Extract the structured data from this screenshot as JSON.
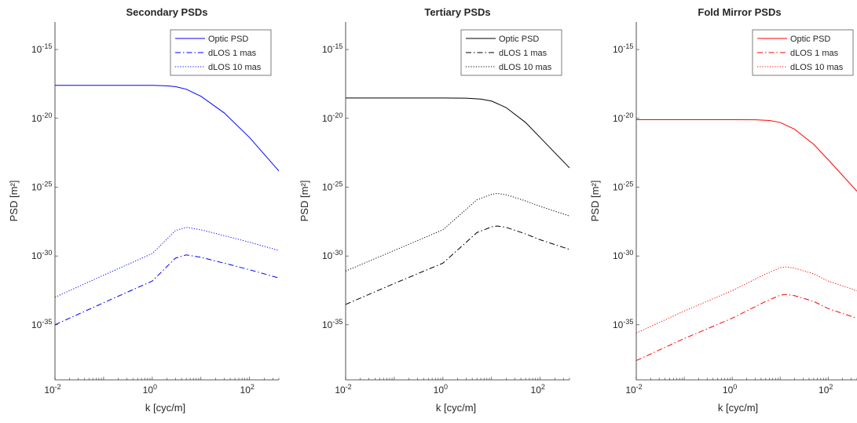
{
  "chart_data": [
    {
      "type": "line",
      "title": "Secondary PSDs",
      "xlabel": "k [cyc/m]",
      "ylabel": "PSD [m²]",
      "xscale": "log",
      "yscale": "log",
      "xlim": [
        0.01,
        400
      ],
      "ylim": [
        1e-39,
        1e-13
      ],
      "xticks": [
        {
          "label": "10",
          "exp": "-2"
        },
        {
          "label": "10",
          "exp": "0"
        },
        {
          "label": "10",
          "exp": "2"
        }
      ],
      "yticks": [
        {
          "label": "10",
          "exp": "-15"
        },
        {
          "label": "10",
          "exp": "-20"
        },
        {
          "label": "10",
          "exp": "-25"
        },
        {
          "label": "10",
          "exp": "-30"
        },
        {
          "label": "10",
          "exp": "-35"
        }
      ],
      "grid": false,
      "legend_position": "top-right",
      "color": "#0000ff",
      "series": [
        {
          "name": "Optic PSD",
          "style": "solid",
          "x": [
            0.01,
            1,
            2,
            3,
            5,
            10,
            30,
            100,
            400
          ],
          "y": [
            2.5e-18,
            2.5e-18,
            2.3e-18,
            2e-18,
            1.3e-18,
            4e-19,
            2.5e-20,
            4e-22,
            1.5e-24
          ]
        },
        {
          "name": "dLOS 1 mas",
          "style": "dashdot",
          "x": [
            0.01,
            0.1,
            1,
            3,
            5,
            10,
            30,
            100,
            400
          ],
          "y": [
            1e-35,
            4e-34,
            1.5e-32,
            7e-31,
            1.2e-30,
            8e-31,
            3e-31,
            1e-31,
            2.5e-32
          ]
        },
        {
          "name": "dLOS 10 mas",
          "style": "dotted",
          "x": [
            0.01,
            0.1,
            1,
            3,
            5,
            10,
            30,
            100,
            400
          ],
          "y": [
            1e-33,
            4e-32,
            1.5e-30,
            7e-29,
            1.2e-28,
            8e-29,
            3e-29,
            1e-29,
            2.5e-30
          ]
        }
      ]
    },
    {
      "type": "line",
      "title": "Tertiary PSDs",
      "xlabel": "k [cyc/m]",
      "ylabel": "PSD [m²]",
      "xscale": "log",
      "yscale": "log",
      "xlim": [
        0.01,
        400
      ],
      "ylim": [
        1e-39,
        1e-13
      ],
      "xticks": [
        {
          "label": "10",
          "exp": "-2"
        },
        {
          "label": "10",
          "exp": "0"
        },
        {
          "label": "10",
          "exp": "2"
        }
      ],
      "yticks": [
        {
          "label": "10",
          "exp": "-15"
        },
        {
          "label": "10",
          "exp": "-20"
        },
        {
          "label": "10",
          "exp": "-25"
        },
        {
          "label": "10",
          "exp": "-30"
        },
        {
          "label": "10",
          "exp": "-35"
        }
      ],
      "grid": false,
      "legend_position": "top-right",
      "color": "#000000",
      "series": [
        {
          "name": "Optic PSD",
          "style": "solid",
          "x": [
            0.01,
            1,
            3,
            6,
            10,
            20,
            50,
            100,
            400
          ],
          "y": [
            3e-19,
            3e-19,
            2.9e-19,
            2.5e-19,
            1.8e-19,
            6e-20,
            5e-21,
            4e-22,
            2.5e-24
          ]
        },
        {
          "name": "dLOS 1 mas",
          "style": "dashdot",
          "x": [
            0.01,
            0.1,
            1,
            5,
            10,
            13,
            20,
            50,
            100,
            400
          ],
          "y": [
            3e-34,
            1e-32,
            3e-31,
            5e-29,
            1.3e-28,
            1.5e-28,
            1.2e-28,
            4e-29,
            1.5e-29,
            3e-30
          ]
        },
        {
          "name": "dLOS 10 mas",
          "style": "dotted",
          "x": [
            0.01,
            0.1,
            1,
            5,
            10,
            13,
            20,
            50,
            100,
            400
          ],
          "y": [
            8e-32,
            2.5e-30,
            8e-29,
            1.2e-26,
            3e-26,
            3.5e-26,
            2.8e-26,
            1e-26,
            4e-27,
            8e-28
          ]
        }
      ]
    },
    {
      "type": "line",
      "title": "Fold Mirror PSDs",
      "xlabel": "k [cyc/m]",
      "ylabel": "PSD [m²]",
      "xscale": "log",
      "yscale": "log",
      "xlim": [
        0.01,
        400
      ],
      "ylim": [
        1e-39,
        1e-13
      ],
      "xticks": [
        {
          "label": "10",
          "exp": "-2"
        },
        {
          "label": "10",
          "exp": "0"
        },
        {
          "label": "10",
          "exp": "2"
        }
      ],
      "yticks": [
        {
          "label": "10",
          "exp": "-15"
        },
        {
          "label": "10",
          "exp": "-20"
        },
        {
          "label": "10",
          "exp": "-25"
        },
        {
          "label": "10",
          "exp": "-30"
        },
        {
          "label": "10",
          "exp": "-35"
        }
      ],
      "grid": false,
      "legend_position": "top-right",
      "color": "#ff0000",
      "series": [
        {
          "name": "Optic PSD",
          "style": "solid",
          "x": [
            0.01,
            1,
            3,
            6,
            10,
            20,
            50,
            100,
            400
          ],
          "y": [
            8e-21,
            8e-21,
            7.8e-21,
            7e-21,
            5e-21,
            1.6e-21,
            1.3e-22,
            1e-23,
            5e-26
          ]
        },
        {
          "name": "dLOS 1 mas",
          "style": "dashdot",
          "x": [
            0.01,
            0.1,
            1,
            5,
            10,
            13,
            20,
            50,
            100,
            400
          ],
          "y": [
            2.5e-38,
            1e-36,
            3e-35,
            5e-34,
            1.4e-33,
            1.6e-33,
            1.3e-33,
            5e-34,
            1.5e-34,
            3e-35
          ]
        },
        {
          "name": "dLOS 10 mas",
          "style": "dotted",
          "x": [
            0.01,
            0.1,
            1,
            5,
            10,
            13,
            20,
            50,
            100,
            400
          ],
          "y": [
            2.5e-36,
            1e-34,
            3e-33,
            5e-32,
            1.4e-31,
            1.6e-31,
            1.3e-31,
            5e-32,
            1.5e-32,
            3e-33
          ]
        }
      ]
    }
  ]
}
